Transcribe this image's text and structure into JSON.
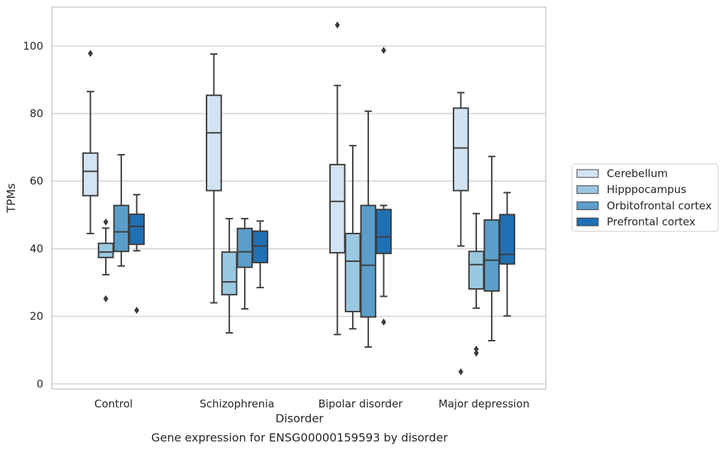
{
  "chart_data": {
    "type": "box",
    "caption": "Gene expression for ENSG00000159593 by disorder",
    "xlabel": "Disorder",
    "ylabel": "TPMs",
    "ylim": [
      -1.5,
      111.5
    ],
    "yticks": [
      0,
      20,
      40,
      60,
      80,
      100
    ],
    "grid": "horizontal",
    "legend_position": "right",
    "categories": [
      "Control",
      "Schizophrenia",
      "Bipolar disorder",
      "Major depression"
    ],
    "series": [
      {
        "name": "Cerebellum",
        "color": "#d2e3f3",
        "boxes": [
          {
            "whisker_low": 44.5,
            "q1": 55.7,
            "median": 62.9,
            "q3": 68.3,
            "whisker_high": 86.5,
            "outliers": [
              97.8
            ]
          },
          {
            "whisker_low": 24.0,
            "q1": 57.2,
            "median": 74.3,
            "q3": 85.4,
            "whisker_high": 97.6,
            "outliers": []
          },
          {
            "whisker_low": 14.6,
            "q1": 38.8,
            "median": 54.0,
            "q3": 64.9,
            "whisker_high": 88.3,
            "outliers": [
              106.2
            ]
          },
          {
            "whisker_low": 40.8,
            "q1": 57.2,
            "median": 69.8,
            "q3": 81.6,
            "whisker_high": 86.2,
            "outliers": [
              3.6
            ]
          }
        ]
      },
      {
        "name": "Hipppocampus",
        "color": "#9ac8e0",
        "boxes": [
          {
            "whisker_low": 32.3,
            "q1": 37.4,
            "median": 39.0,
            "q3": 41.6,
            "whisker_high": 46.1,
            "outliers": [
              47.9,
              25.2
            ]
          },
          {
            "whisker_low": 15.1,
            "q1": 26.4,
            "median": 30.2,
            "q3": 39.0,
            "whisker_high": 48.9,
            "outliers": []
          },
          {
            "whisker_low": 16.3,
            "q1": 21.4,
            "median": 36.3,
            "q3": 44.5,
            "whisker_high": 70.5,
            "outliers": []
          },
          {
            "whisker_low": 22.4,
            "q1": 28.1,
            "median": 35.3,
            "q3": 39.2,
            "whisker_high": 50.4,
            "outliers": [
              10.3,
              9.1
            ]
          }
        ]
      },
      {
        "name": "Orbitofrontal cortex",
        "color": "#5a9ec9",
        "boxes": [
          {
            "whisker_low": 34.9,
            "q1": 39.2,
            "median": 45.0,
            "q3": 52.8,
            "whisker_high": 67.8,
            "outliers": []
          },
          {
            "whisker_low": 22.2,
            "q1": 34.5,
            "median": 39.1,
            "q3": 46.0,
            "whisker_high": 48.9,
            "outliers": []
          },
          {
            "whisker_low": 10.9,
            "q1": 19.8,
            "median": 35.1,
            "q3": 52.8,
            "whisker_high": 80.7,
            "outliers": []
          },
          {
            "whisker_low": 12.8,
            "q1": 27.5,
            "median": 36.6,
            "q3": 48.5,
            "whisker_high": 67.3,
            "outliers": []
          }
        ]
      },
      {
        "name": "Prefrontal cortex",
        "color": "#2070b4",
        "boxes": [
          {
            "whisker_low": 39.4,
            "q1": 41.3,
            "median": 46.6,
            "q3": 50.2,
            "whisker_high": 56.0,
            "outliers": [
              21.8
            ]
          },
          {
            "whisker_low": 28.5,
            "q1": 35.9,
            "median": 40.8,
            "q3": 45.2,
            "whisker_high": 48.2,
            "outliers": []
          },
          {
            "whisker_low": 25.9,
            "q1": 38.6,
            "median": 43.5,
            "q3": 51.6,
            "whisker_high": 52.8,
            "outliers": [
              98.7,
              18.3
            ]
          },
          {
            "whisker_low": 20.1,
            "q1": 35.5,
            "median": 38.3,
            "q3": 50.1,
            "whisker_high": 56.6,
            "outliers": []
          }
        ]
      }
    ]
  }
}
